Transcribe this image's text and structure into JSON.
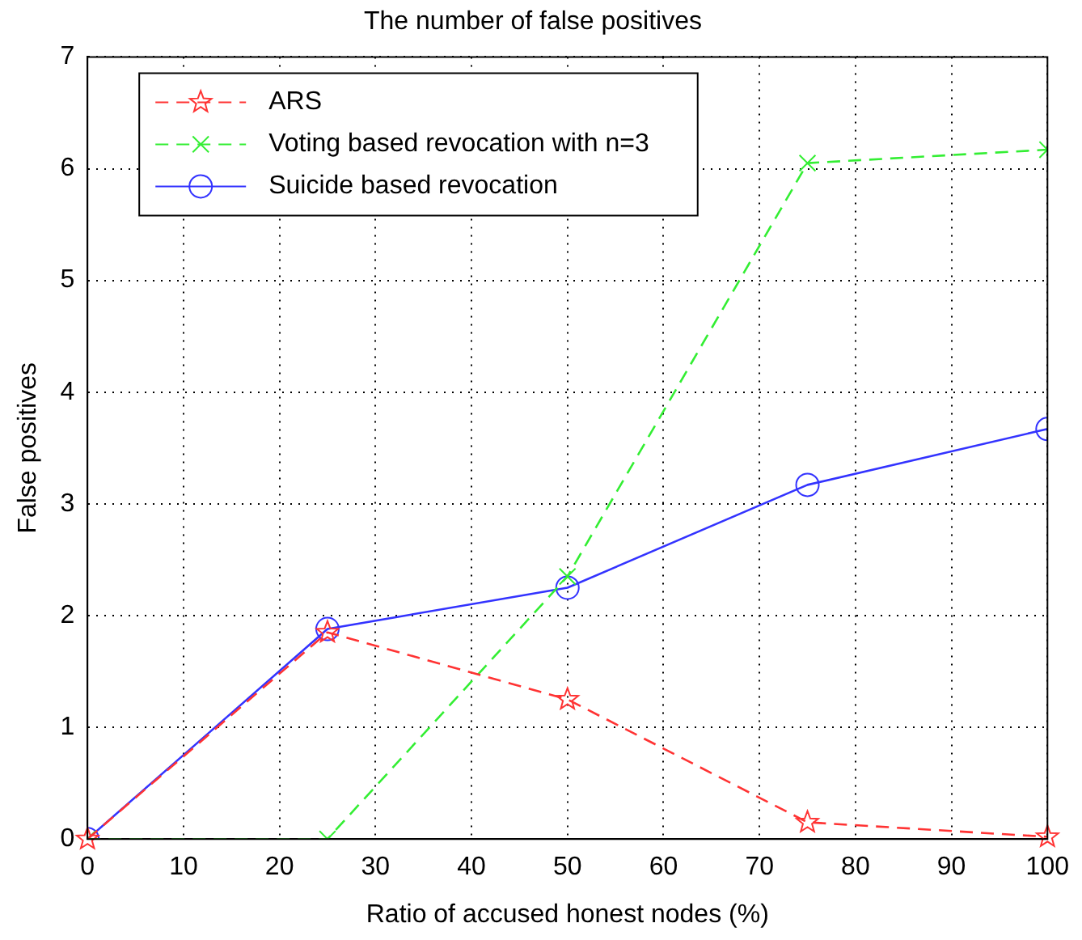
{
  "chart_data": {
    "type": "line",
    "title": "The number of false positives",
    "xlabel": "Ratio of accused honest nodes (%)",
    "ylabel": "False positives",
    "x": [
      0,
      25,
      50,
      75,
      100
    ],
    "series": [
      {
        "name": "ARS",
        "color": "#ff3333",
        "values": [
          0,
          1.85,
          1.25,
          0.15,
          0.02
        ],
        "marker": "star",
        "line_style": "dashed"
      },
      {
        "name": "Voting based revocation with n=3",
        "color": "#33ee33",
        "values": [
          0,
          0,
          2.35,
          6.05,
          6.17
        ],
        "marker": "cross",
        "line_style": "dashed"
      },
      {
        "name": "Suicide based revocation",
        "color": "#3333ff",
        "values": [
          0,
          1.88,
          2.25,
          3.17,
          3.67
        ],
        "marker": "circle",
        "line_style": "solid"
      }
    ],
    "xlim": [
      0,
      100
    ],
    "xticks": [
      0,
      10,
      20,
      30,
      40,
      50,
      60,
      70,
      80,
      90,
      100
    ],
    "ylim": [
      0,
      7
    ],
    "yticks": [
      0,
      1,
      2,
      3,
      4,
      5,
      6,
      7
    ],
    "grid": true,
    "legend": "top left"
  }
}
